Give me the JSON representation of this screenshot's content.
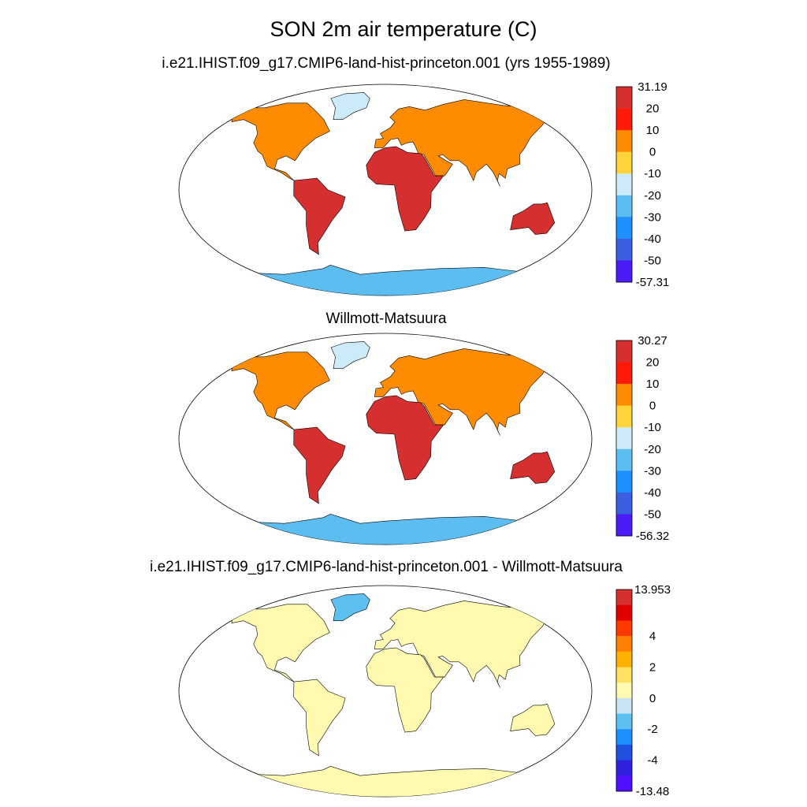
{
  "title": "SON 2m air temperature (C)",
  "chart_data": [
    {
      "type": "heatmap",
      "title": "i.e21.IHIST.f09_g17.CMIP6-land-hist-princeton.001 (yrs 1955-1989)",
      "colorbar": {
        "min_label": "-57.31",
        "max_label": "31.19",
        "levels": [
          "20",
          "10",
          "0",
          "-10",
          "-20",
          "-30",
          "-40",
          "-50"
        ],
        "colors": [
          "#d62f2f",
          "#ff1a0a",
          "#ff8c00",
          "#ffd33a",
          "#cdeaf8",
          "#5cbef0",
          "#1e90ff",
          "#3b5fe0",
          "#4b1cf5"
        ]
      }
    },
    {
      "type": "heatmap",
      "title": "Willmott-Matsuura",
      "colorbar": {
        "min_label": "-56.32",
        "max_label": "30.27",
        "levels": [
          "20",
          "10",
          "0",
          "-10",
          "-20",
          "-30",
          "-40",
          "-50"
        ],
        "colors": [
          "#d62f2f",
          "#ff1a0a",
          "#ff8c00",
          "#ffd33a",
          "#cdeaf8",
          "#5cbef0",
          "#1e90ff",
          "#3b5fe0",
          "#4b1cf5"
        ]
      }
    },
    {
      "type": "heatmap",
      "title": "i.e21.IHIST.f09_g17.CMIP6-land-hist-princeton.001 - Willmott-Matsuura",
      "colorbar": {
        "min_label": "-13.48",
        "max_label": "13.953",
        "levels": [
          "",
          "",
          "4",
          "",
          "2",
          "",
          "0",
          "",
          "-2",
          "",
          "-4",
          ""
        ],
        "colors": [
          "#d62f2f",
          "#e00000",
          "#ff3a00",
          "#ff8000",
          "#ffb000",
          "#ffe060",
          "#fffab0",
          "#c8e4f4",
          "#5cc0f0",
          "#1e90ff",
          "#2050e0",
          "#3020e0",
          "#5010ff"
        ]
      }
    }
  ]
}
